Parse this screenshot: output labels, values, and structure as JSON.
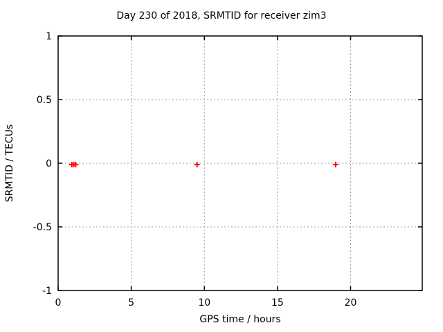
{
  "window": {
    "background": "#ffffff"
  },
  "chart_data": {
    "type": "scatter",
    "title": "Day 230 of 2018, SRMTID for receiver zim3",
    "xlabel": "GPS time / hours",
    "ylabel": "SRMTID / TECUs",
    "xlim": [
      0,
      24.9
    ],
    "ylim": [
      -1,
      1
    ],
    "xticks": [
      0,
      5,
      10,
      15,
      20
    ],
    "xtick_labels": [
      "0",
      "5",
      "10",
      "15",
      "20"
    ],
    "yticks": [
      -1,
      -0.5,
      0,
      0.5,
      1
    ],
    "ytick_labels": [
      "-1",
      "-0.5",
      "0",
      "0.5",
      "1"
    ],
    "grid": true,
    "legend": "none",
    "series": [
      {
        "name": "SRMTID",
        "marker": "plus",
        "color": "#ff0000",
        "points": [
          {
            "x": 0.93,
            "y": -0.01
          },
          {
            "x": 1.07,
            "y": -0.01
          },
          {
            "x": 1.2,
            "y": -0.01
          },
          {
            "x": 9.5,
            "y": -0.01
          },
          {
            "x": 18.98,
            "y": -0.01
          }
        ]
      }
    ],
    "colors": {
      "marker": "#ff0000",
      "grid": "#9b9b9b",
      "axis": "#000000",
      "text": "#000000",
      "background": "#ffffff"
    }
  }
}
